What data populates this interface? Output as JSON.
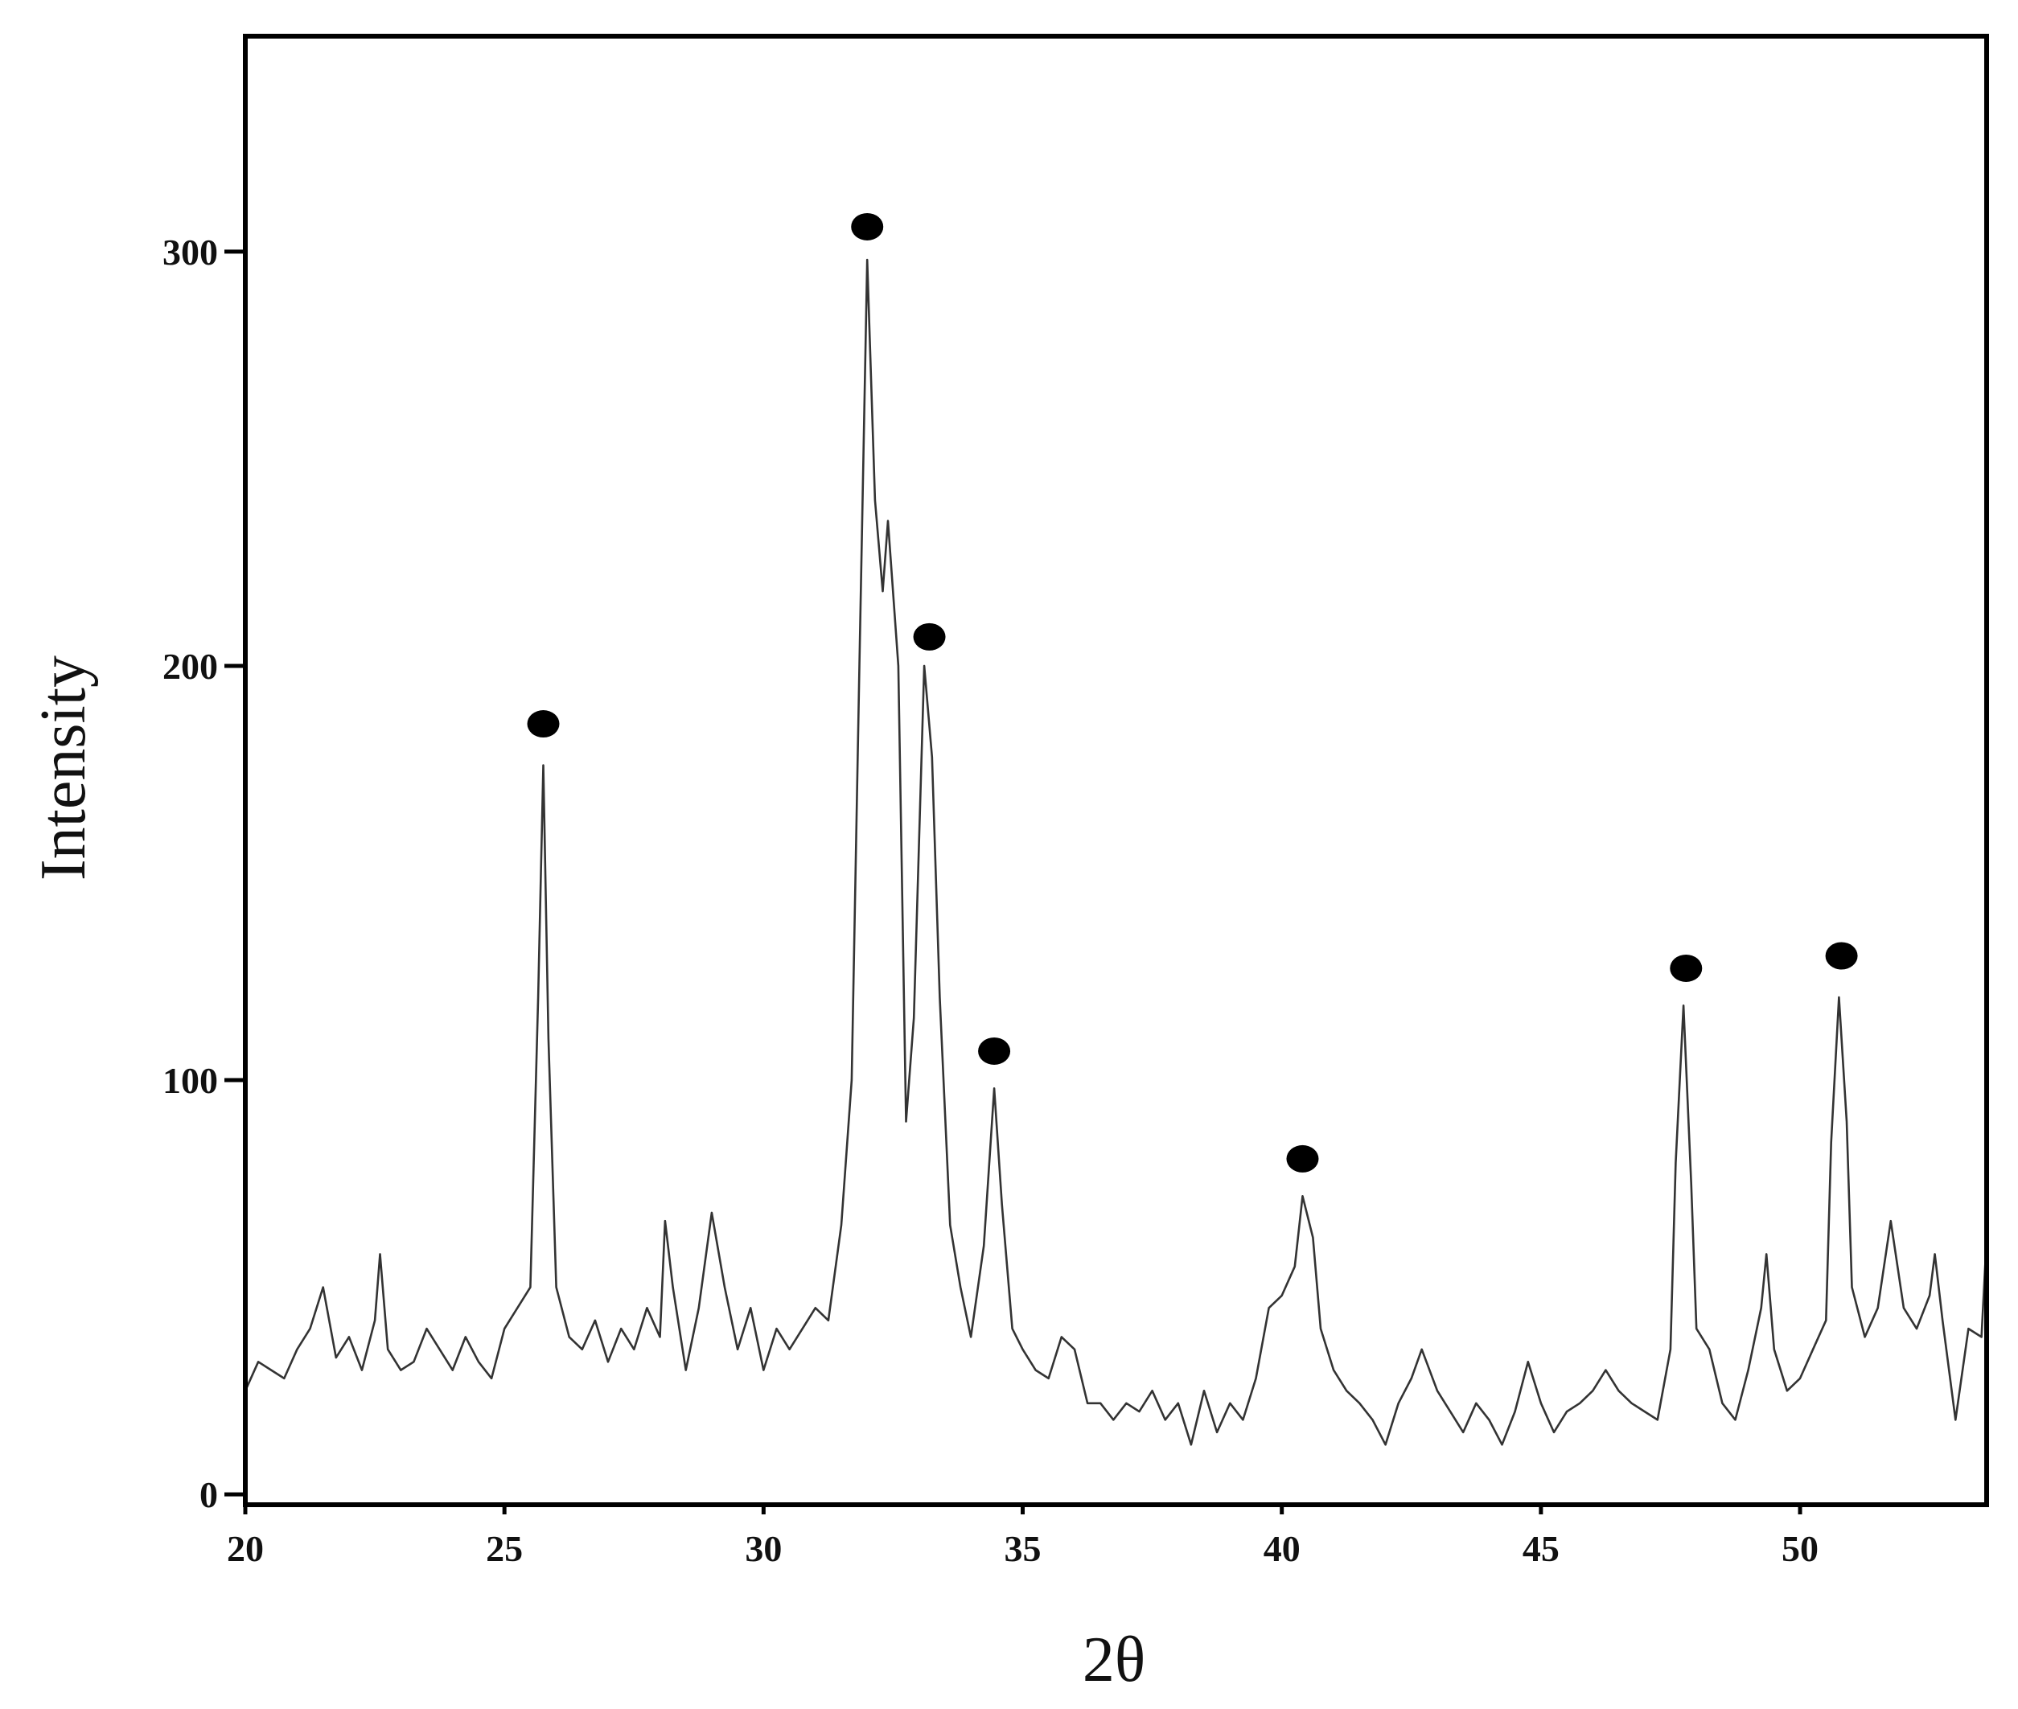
{
  "chart_data": {
    "type": "line",
    "x_label": "2θ",
    "y_label": "Intensity",
    "xlim": [
      20,
      53.6
    ],
    "ylim": [
      -2.5,
      352
    ],
    "xticks": [
      20,
      25,
      30,
      35,
      40,
      45,
      50
    ],
    "yticks": [
      0,
      100,
      200,
      300
    ],
    "x": [
      20.0,
      20.25,
      20.5,
      20.75,
      21.0,
      21.25,
      21.5,
      21.75,
      22.0,
      22.25,
      22.5,
      22.6,
      22.75,
      23.0,
      23.25,
      23.5,
      23.75,
      24.0,
      24.25,
      24.5,
      24.75,
      25.0,
      25.25,
      25.5,
      25.65,
      25.75,
      25.85,
      26.0,
      26.25,
      26.5,
      26.75,
      27.0,
      27.25,
      27.5,
      27.75,
      28.0,
      28.1,
      28.25,
      28.5,
      28.75,
      29.0,
      29.25,
      29.5,
      29.75,
      30.0,
      30.25,
      30.5,
      30.75,
      31.0,
      31.25,
      31.5,
      31.7,
      31.85,
      32.0,
      32.15,
      32.3,
      32.4,
      32.6,
      32.75,
      32.9,
      33.1,
      33.25,
      33.4,
      33.6,
      33.8,
      34.0,
      34.25,
      34.45,
      34.6,
      34.8,
      35.0,
      35.25,
      35.5,
      35.75,
      36.0,
      36.25,
      36.5,
      36.75,
      37.0,
      37.25,
      37.5,
      37.75,
      38.0,
      38.25,
      38.5,
      38.75,
      39.0,
      39.25,
      39.5,
      39.75,
      40.0,
      40.25,
      40.4,
      40.6,
      40.75,
      41.0,
      41.25,
      41.5,
      41.75,
      42.0,
      42.25,
      42.5,
      42.7,
      43.0,
      43.25,
      43.5,
      43.75,
      44.0,
      44.25,
      44.5,
      44.75,
      45.0,
      45.25,
      45.5,
      45.75,
      46.0,
      46.25,
      46.5,
      46.75,
      47.0,
      47.25,
      47.5,
      47.6,
      47.75,
      47.9,
      48.0,
      48.25,
      48.5,
      48.75,
      49.0,
      49.25,
      49.35,
      49.5,
      49.75,
      50.0,
      50.25,
      50.5,
      50.6,
      50.75,
      50.9,
      51.0,
      51.25,
      51.5,
      51.75,
      52.0,
      52.25,
      52.5,
      52.6,
      52.75,
      53.0,
      53.25,
      53.5,
      53.6
    ],
    "series": [
      {
        "color": "#333333",
        "values": [
          25,
          32,
          30,
          28,
          35,
          40,
          50,
          33,
          38,
          30,
          42,
          58,
          35,
          30,
          32,
          40,
          35,
          30,
          38,
          32,
          28,
          40,
          45,
          50,
          120,
          176,
          110,
          50,
          38,
          35,
          42,
          32,
          40,
          35,
          45,
          38,
          66,
          50,
          30,
          45,
          68,
          50,
          35,
          45,
          30,
          40,
          35,
          40,
          45,
          42,
          65,
          100,
          200,
          298,
          240,
          218,
          235,
          200,
          90,
          115,
          200,
          178,
          120,
          65,
          50,
          38,
          60,
          98,
          70,
          40,
          35,
          30,
          28,
          38,
          35,
          22,
          22,
          18,
          22,
          20,
          25,
          18,
          22,
          12,
          25,
          15,
          22,
          18,
          28,
          45,
          48,
          55,
          72,
          62,
          40,
          30,
          25,
          22,
          18,
          12,
          22,
          28,
          35,
          25,
          20,
          15,
          22,
          18,
          12,
          20,
          32,
          22,
          15,
          20,
          22,
          25,
          30,
          25,
          22,
          20,
          18,
          35,
          80,
          118,
          75,
          40,
          35,
          22,
          18,
          30,
          45,
          58,
          35,
          25,
          28,
          35,
          42,
          85,
          120,
          90,
          50,
          38,
          45,
          66,
          45,
          40,
          48,
          58,
          42,
          18,
          40,
          38,
          62
        ]
      }
    ],
    "peak_markers": {
      "x": [
        25.75,
        32.0,
        33.2,
        34.45,
        40.4,
        47.8,
        50.8
      ],
      "values": [
        186,
        306,
        207,
        107,
        81,
        127,
        130
      ],
      "color": "#000000"
    }
  }
}
